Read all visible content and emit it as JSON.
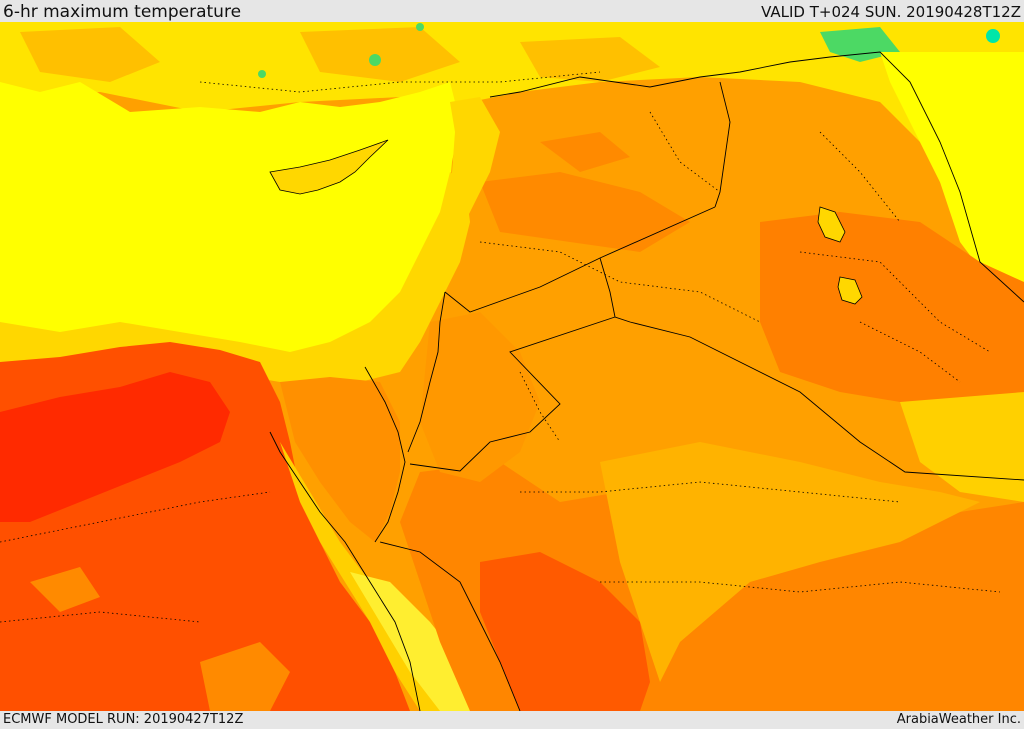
{
  "header": {
    "title": "6-hr maximum temperature",
    "valid": "VALID T+024 SUN. 20190428T12Z"
  },
  "footer": {
    "model_run": "ECMWF MODEL RUN: 20190427T12Z",
    "credit": "ArabiaWeather Inc."
  },
  "map": {
    "colors": {
      "sea": "#ffff00",
      "warm_yellow": "#ffd700",
      "orange_light": "#ffb300",
      "orange": "#ff9800",
      "orange_dark": "#ff7400",
      "red_orange": "#ff5000",
      "red": "#ff2a00",
      "green": "#4cd964",
      "teal": "#00e6a8",
      "border_line": "#000000"
    }
  }
}
